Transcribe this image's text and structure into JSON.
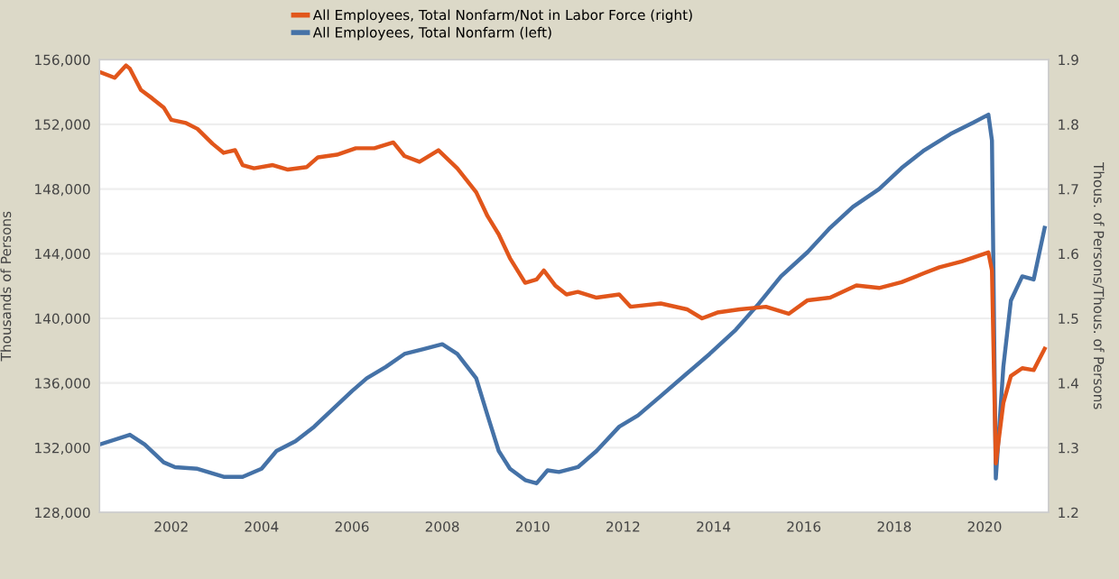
{
  "chart_data": {
    "type": "line",
    "ylabel": "Thousands of Persons",
    "y2label": "Thous. of Persons/Thous. of Persons",
    "legend": "top left",
    "grid": "y",
    "line_style": "solid",
    "marker": "none",
    "xlim": [
      "2000-06",
      "2021-06"
    ],
    "xticks": [
      "2002",
      "2004",
      "2006",
      "2008",
      "2010",
      "2012",
      "2014",
      "2016",
      "2018",
      "2020"
    ],
    "ylim": [
      128000,
      156000
    ],
    "yticks": [
      {
        "value": 128000,
        "label": "128,000"
      },
      {
        "value": 132000,
        "label": "132,000"
      },
      {
        "value": 136000,
        "label": "136,000"
      },
      {
        "value": 140000,
        "label": "140,000"
      },
      {
        "value": 144000,
        "label": "144,000"
      },
      {
        "value": 148000,
        "label": "148,000"
      },
      {
        "value": 152000,
        "label": "152,000"
      },
      {
        "value": 156000,
        "label": "156,000"
      }
    ],
    "y2lim": [
      1.2,
      1.9
    ],
    "y2ticks": [
      1.2,
      1.3,
      1.4,
      1.5,
      1.6,
      1.7,
      1.8,
      1.9
    ],
    "series": [
      {
        "name": "All Employees, Total Nonfarm/Not in Labor Force (right)",
        "color": "#e1561b",
        "axis": "y2",
        "x": [
          "2000-06",
          "2000-10",
          "2001-01",
          "2001-02",
          "2001-05",
          "2001-08",
          "2001-11",
          "2002-01",
          "2002-05",
          "2002-08",
          "2002-12",
          "2003-03",
          "2003-06",
          "2003-08",
          "2003-11",
          "2004-04",
          "2004-08",
          "2005-01",
          "2005-04",
          "2005-09",
          "2006-02",
          "2006-07",
          "2006-12",
          "2007-03",
          "2007-07",
          "2007-12",
          "2008-05",
          "2008-10",
          "2009-01",
          "2009-04",
          "2009-07",
          "2009-11",
          "2010-02",
          "2010-04",
          "2010-07",
          "2010-10",
          "2011-01",
          "2011-06",
          "2011-12",
          "2012-03",
          "2012-11",
          "2013-06",
          "2013-10",
          "2014-02",
          "2014-08",
          "2015-03",
          "2015-09",
          "2016-02",
          "2016-08",
          "2017-03",
          "2017-09",
          "2018-03",
          "2018-09",
          "2019-01",
          "2019-07",
          "2020-02",
          "2020-03",
          "2020-04",
          "2020-06",
          "2020-08",
          "2020-11",
          "2021-02",
          "2021-05"
        ],
        "values": [
          1.881,
          1.872,
          1.891,
          1.886,
          1.853,
          1.84,
          1.826,
          1.807,
          1.802,
          1.793,
          1.77,
          1.756,
          1.76,
          1.737,
          1.732,
          1.737,
          1.73,
          1.734,
          1.749,
          1.753,
          1.763,
          1.763,
          1.772,
          1.751,
          1.742,
          1.76,
          1.732,
          1.695,
          1.658,
          1.63,
          1.593,
          1.555,
          1.56,
          1.574,
          1.551,
          1.537,
          1.541,
          1.532,
          1.537,
          1.518,
          1.523,
          1.514,
          1.5,
          1.509,
          1.514,
          1.518,
          1.507,
          1.528,
          1.532,
          1.551,
          1.547,
          1.556,
          1.57,
          1.579,
          1.588,
          1.602,
          1.574,
          1.276,
          1.369,
          1.411,
          1.423,
          1.42,
          1.453
        ]
      },
      {
        "name": "All Employees, Total Nonfarm (left)",
        "color": "#4572a7",
        "x": [
          "2000-06",
          "2001-02",
          "2001-06",
          "2001-11",
          "2002-02",
          "2002-08",
          "2003-03",
          "2003-08",
          "2004-01",
          "2004-05",
          "2004-10",
          "2005-03",
          "2005-08",
          "2006-01",
          "2006-05",
          "2006-10",
          "2007-03",
          "2007-08",
          "2008-01",
          "2008-05",
          "2008-10",
          "2009-01",
          "2009-04",
          "2009-07",
          "2009-11",
          "2010-02",
          "2010-05",
          "2010-08",
          "2011-01",
          "2011-06",
          "2011-12",
          "2012-05",
          "2012-11",
          "2013-06",
          "2013-12",
          "2014-07",
          "2015-01",
          "2015-07",
          "2016-02",
          "2016-08",
          "2017-02",
          "2017-09",
          "2018-03",
          "2018-09",
          "2019-04",
          "2019-10",
          "2020-02",
          "2020-03",
          "2020-04",
          "2020-06",
          "2020-08",
          "2020-11",
          "2021-02",
          "2021-05"
        ],
        "values": [
          132200,
          132800,
          132200,
          131100,
          130800,
          130700,
          130200,
          130200,
          130700,
          131800,
          132400,
          133300,
          134400,
          135500,
          136300,
          137000,
          137800,
          138100,
          138400,
          137800,
          136300,
          134000,
          131800,
          130700,
          130000,
          129800,
          130600,
          130500,
          130800,
          131800,
          133300,
          134000,
          135200,
          136600,
          137800,
          139300,
          140900,
          142600,
          144100,
          145600,
          146900,
          148000,
          149300,
          150400,
          151400,
          152100,
          152600,
          151000,
          130100,
          137000,
          141100,
          142600,
          142400,
          145600
        ]
      }
    ]
  }
}
